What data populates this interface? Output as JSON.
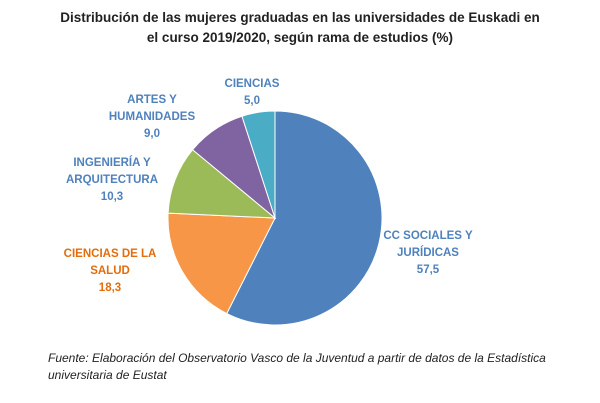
{
  "chart_data": {
    "type": "pie",
    "title": "Distribución de las mujeres graduadas en las universidades de Euskadi en el curso 2019/2020, según rama de estudios (%)",
    "categories": [
      "CC SOCIALES Y JURÍDICAS",
      "CIENCIAS DE LA SALUD",
      "INGENIERÍA Y ARQUITECTURA",
      "ARTES Y HUMANIDADES",
      "CIENCIAS"
    ],
    "values": [
      57.5,
      18.3,
      10.3,
      9.0,
      5.0
    ],
    "value_labels": [
      "57,5",
      "18,3",
      "10,3",
      "9,0",
      "5,0"
    ],
    "colors": [
      "#4f81bd",
      "#f79646",
      "#9bbb59",
      "#8064a2",
      "#4bacc6"
    ],
    "source": "Fuente: Elaboración del Observatorio Vasco de la Juventud a partir de datos de la Estadística universitaria de Eustat"
  }
}
